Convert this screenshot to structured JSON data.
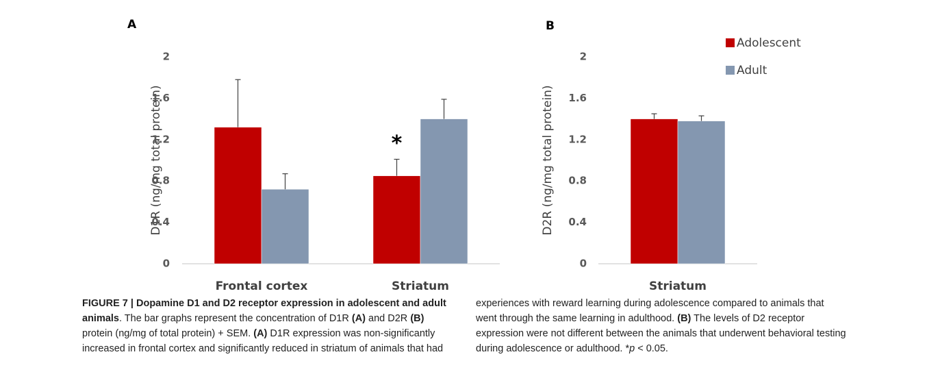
{
  "chart_data": [
    {
      "type": "bar",
      "panel": "A",
      "ylabel": "D1R (ng/mg total protein)",
      "categories": [
        "Frontal cortex",
        "Striatum"
      ],
      "series": [
        {
          "color": "#c00000",
          "values": [
            1.32,
            0.85
          ],
          "errors": [
            0.46,
            0.16
          ]
        },
        {
          "color": "#8497b0",
          "values": [
            0.72,
            1.4
          ],
          "errors": [
            0.15,
            0.19
          ]
        }
      ],
      "annotation": "*",
      "ylim": [
        0,
        2
      ],
      "yticks": [
        0,
        0.4,
        0.8,
        1.2,
        1.6,
        2
      ],
      "grid": false
    },
    {
      "type": "bar",
      "panel": "B",
      "ylabel": "D2R (ng/mg total protein)",
      "categories": [
        "Striatum"
      ],
      "series": [
        {
          "name": "Adolescent",
          "color": "#c00000",
          "values": [
            1.4
          ],
          "errors": [
            0.05
          ]
        },
        {
          "name": "Adult",
          "color": "#8497b0",
          "values": [
            1.38
          ],
          "errors": [
            0.05
          ]
        }
      ],
      "legend": "top-right",
      "ylim": [
        0,
        2
      ],
      "yticks": [
        0,
        0.4,
        0.8,
        1.2,
        1.6,
        2
      ],
      "grid": false
    }
  ],
  "caption": {
    "runs": [
      {
        "text": "FIGURE 7 | Dopamine D1 and D2 receptor expression in adolescent and adult animals",
        "style": "bold"
      },
      {
        "text": ". The bar graphs represent the concentration of D1R ",
        "style": "normal"
      },
      {
        "text": "(A)",
        "style": "bold"
      },
      {
        "text": " and D2R ",
        "style": "normal"
      },
      {
        "text": "(B)",
        "style": "bold"
      },
      {
        "text": " protein (ng/mg of total protein) + SEM. ",
        "style": "normal"
      },
      {
        "text": "(A)",
        "style": "bold"
      },
      {
        "text": " D1R expression was non-significantly increased in frontal cortex and significantly reduced in striatum of animals that had experiences with reward learning during adolescence compared to animals that went through the same learning in adulthood. ",
        "style": "normal"
      },
      {
        "text": "(B)",
        "style": "bold"
      },
      {
        "text": " The levels of D2 receptor expression were not different between the animals that underwent behavioral testing during adolescence or adulthood. *",
        "style": "normal"
      },
      {
        "text": "p",
        "style": "italic"
      },
      {
        "text": " < 0.05.",
        "style": "normal"
      }
    ]
  }
}
